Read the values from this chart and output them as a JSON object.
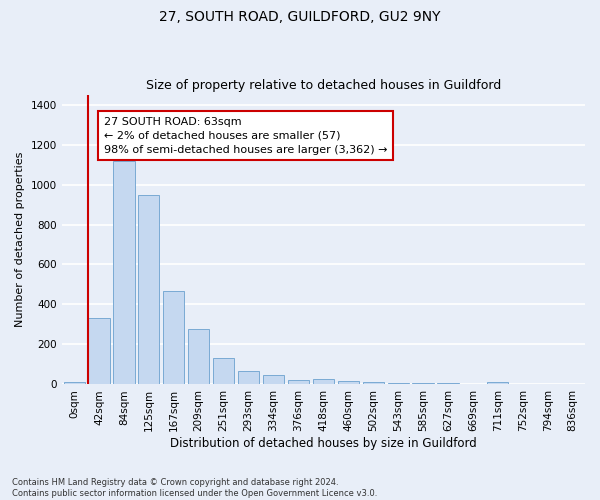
{
  "title1": "27, SOUTH ROAD, GUILDFORD, GU2 9NY",
  "title2": "Size of property relative to detached houses in Guildford",
  "xlabel": "Distribution of detached houses by size in Guildford",
  "ylabel": "Number of detached properties",
  "categories": [
    "0sqm",
    "42sqm",
    "84sqm",
    "125sqm",
    "167sqm",
    "209sqm",
    "251sqm",
    "293sqm",
    "334sqm",
    "376sqm",
    "418sqm",
    "460sqm",
    "502sqm",
    "543sqm",
    "585sqm",
    "627sqm",
    "669sqm",
    "711sqm",
    "752sqm",
    "794sqm",
    "836sqm"
  ],
  "values": [
    10,
    330,
    1120,
    950,
    465,
    275,
    130,
    65,
    47,
    20,
    25,
    18,
    10,
    5,
    5,
    5,
    0,
    14,
    0,
    0,
    0
  ],
  "bar_color": "#c5d8f0",
  "bar_edge_color": "#7aaad4",
  "vline_color": "#cc0000",
  "annotation_text": "27 SOUTH ROAD: 63sqm\n← 2% of detached houses are smaller (57)\n98% of semi-detached houses are larger (3,362) →",
  "annotation_box_color": "#ffffff",
  "annotation_box_edge_color": "#cc0000",
  "ylim": [
    0,
    1450
  ],
  "yticks": [
    0,
    200,
    400,
    600,
    800,
    1000,
    1200,
    1400
  ],
  "footnote": "Contains HM Land Registry data © Crown copyright and database right 2024.\nContains public sector information licensed under the Open Government Licence v3.0.",
  "bg_color": "#e8eef8",
  "plot_bg_color": "#e8eef8",
  "grid_color": "#ffffff",
  "title1_fontsize": 10,
  "title2_fontsize": 9,
  "xlabel_fontsize": 8.5,
  "ylabel_fontsize": 8,
  "tick_fontsize": 7.5,
  "annot_fontsize": 8,
  "footnote_fontsize": 6
}
